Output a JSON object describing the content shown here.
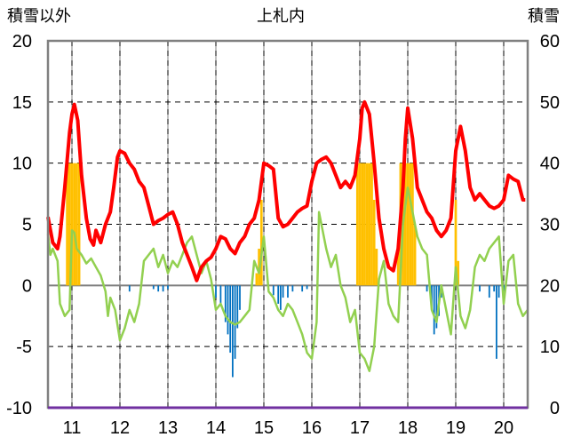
{
  "chart_data": {
    "type": "combo",
    "title": "上札内",
    "y_left_label": "積雪以外",
    "y_right_label": "積雪",
    "y_left_ticks": [
      "20",
      "15",
      "10",
      "5",
      "0",
      "-5",
      "-10"
    ],
    "y_right_ticks": [
      "60",
      "50",
      "40",
      "30",
      "20",
      "10",
      "0"
    ],
    "x_tick_labels": [
      "11",
      "12",
      "13",
      "14",
      "15",
      "16",
      "17",
      "18",
      "19",
      "20"
    ],
    "xlim": [
      10.5,
      20.5
    ],
    "ylim_left": [
      -10,
      20
    ],
    "ylim_right": [
      0,
      60
    ],
    "grid": true,
    "colors": {
      "red_line": "#ff0000",
      "green_line": "#92d050",
      "orange_bars": "#ffc000",
      "blue_bars": "#0070c0",
      "frame": "#808080",
      "bottom_line": "#7030a0"
    },
    "red_line": [
      [
        10.5,
        5.6
      ],
      [
        10.6,
        3.5
      ],
      [
        10.7,
        3.0
      ],
      [
        10.75,
        4.0
      ],
      [
        10.85,
        8.0
      ],
      [
        10.95,
        12.5
      ],
      [
        11.0,
        14.0
      ],
      [
        11.05,
        14.8
      ],
      [
        11.12,
        13.5
      ],
      [
        11.2,
        9.0
      ],
      [
        11.3,
        5.5
      ],
      [
        11.38,
        3.8
      ],
      [
        11.45,
        3.3
      ],
      [
        11.5,
        4.5
      ],
      [
        11.6,
        3.5
      ],
      [
        11.7,
        5.0
      ],
      [
        11.8,
        6.0
      ],
      [
        11.87,
        8.0
      ],
      [
        11.95,
        10.5
      ],
      [
        12.0,
        11.0
      ],
      [
        12.1,
        10.8
      ],
      [
        12.2,
        10.0
      ],
      [
        12.3,
        9.5
      ],
      [
        12.4,
        8.5
      ],
      [
        12.5,
        8.0
      ],
      [
        12.6,
        6.5
      ],
      [
        12.7,
        5.0
      ],
      [
        12.8,
        5.3
      ],
      [
        12.9,
        5.5
      ],
      [
        13.0,
        5.8
      ],
      [
        13.1,
        6.0
      ],
      [
        13.2,
        5.0
      ],
      [
        13.3,
        3.5
      ],
      [
        13.4,
        2.5
      ],
      [
        13.5,
        1.5
      ],
      [
        13.6,
        0.4
      ],
      [
        13.7,
        1.5
      ],
      [
        13.8,
        2.0
      ],
      [
        13.9,
        2.3
      ],
      [
        14.0,
        3.0
      ],
      [
        14.1,
        4.0
      ],
      [
        14.2,
        3.8
      ],
      [
        14.3,
        3.0
      ],
      [
        14.4,
        2.6
      ],
      [
        14.5,
        3.5
      ],
      [
        14.6,
        4.0
      ],
      [
        14.7,
        5.0
      ],
      [
        14.8,
        5.5
      ],
      [
        14.9,
        7.0
      ],
      [
        15.0,
        10.0
      ],
      [
        15.1,
        9.8
      ],
      [
        15.2,
        9.5
      ],
      [
        15.3,
        5.5
      ],
      [
        15.4,
        4.8
      ],
      [
        15.5,
        5.0
      ],
      [
        15.6,
        5.5
      ],
      [
        15.7,
        6.0
      ],
      [
        15.8,
        6.3
      ],
      [
        15.9,
        6.5
      ],
      [
        16.0,
        8.5
      ],
      [
        16.1,
        10.0
      ],
      [
        16.2,
        10.3
      ],
      [
        16.3,
        10.5
      ],
      [
        16.4,
        10.0
      ],
      [
        16.5,
        9.0
      ],
      [
        16.6,
        8.0
      ],
      [
        16.7,
        8.5
      ],
      [
        16.8,
        8.0
      ],
      [
        16.9,
        9.0
      ],
      [
        17.0,
        12.0
      ],
      [
        17.05,
        14.5
      ],
      [
        17.1,
        15.0
      ],
      [
        17.2,
        14.0
      ],
      [
        17.3,
        10.0
      ],
      [
        17.4,
        5.5
      ],
      [
        17.5,
        3.0
      ],
      [
        17.6,
        1.5
      ],
      [
        17.7,
        1.2
      ],
      [
        17.8,
        3.0
      ],
      [
        17.9,
        8.0
      ],
      [
        17.95,
        12.0
      ],
      [
        18.0,
        14.5
      ],
      [
        18.1,
        12.0
      ],
      [
        18.2,
        8.0
      ],
      [
        18.3,
        7.0
      ],
      [
        18.4,
        6.0
      ],
      [
        18.5,
        5.5
      ],
      [
        18.6,
        4.5
      ],
      [
        18.7,
        4.0
      ],
      [
        18.8,
        4.5
      ],
      [
        18.9,
        5.5
      ],
      [
        19.0,
        11.0
      ],
      [
        19.1,
        13.0
      ],
      [
        19.2,
        11.0
      ],
      [
        19.3,
        8.0
      ],
      [
        19.4,
        7.0
      ],
      [
        19.5,
        7.5
      ],
      [
        19.6,
        7.0
      ],
      [
        19.7,
        6.5
      ],
      [
        19.8,
        6.3
      ],
      [
        19.9,
        6.5
      ],
      [
        20.0,
        7.0
      ],
      [
        20.1,
        9.0
      ],
      [
        20.2,
        8.7
      ],
      [
        20.3,
        8.5
      ],
      [
        20.4,
        7.0
      ],
      [
        20.45,
        7.0
      ]
    ],
    "green_line": [
      [
        10.5,
        4.2
      ],
      [
        10.55,
        2.5
      ],
      [
        10.6,
        3.0
      ],
      [
        10.7,
        2.0
      ],
      [
        10.75,
        -1.5
      ],
      [
        10.85,
        -2.5
      ],
      [
        10.95,
        -2.0
      ],
      [
        11.0,
        4.5
      ],
      [
        11.05,
        4.3
      ],
      [
        11.1,
        3.0
      ],
      [
        11.2,
        2.5
      ],
      [
        11.3,
        1.8
      ],
      [
        11.4,
        2.2
      ],
      [
        11.5,
        1.5
      ],
      [
        11.6,
        0.8
      ],
      [
        11.7,
        -0.5
      ],
      [
        11.75,
        -2.5
      ],
      [
        11.8,
        -1.0
      ],
      [
        11.9,
        -2.0
      ],
      [
        12.0,
        -4.5
      ],
      [
        12.1,
        -3.5
      ],
      [
        12.2,
        -2.0
      ],
      [
        12.3,
        -3.0
      ],
      [
        12.4,
        -1.5
      ],
      [
        12.5,
        2.0
      ],
      [
        12.6,
        2.5
      ],
      [
        12.7,
        3.0
      ],
      [
        12.8,
        1.5
      ],
      [
        12.9,
        2.5
      ],
      [
        13.0,
        1.0
      ],
      [
        13.1,
        2.0
      ],
      [
        13.2,
        1.5
      ],
      [
        13.3,
        2.5
      ],
      [
        13.4,
        3.5
      ],
      [
        13.5,
        4.0
      ],
      [
        13.6,
        2.5
      ],
      [
        13.7,
        1.0
      ],
      [
        13.8,
        2.0
      ],
      [
        13.9,
        0.5
      ],
      [
        14.0,
        -2.0
      ],
      [
        14.1,
        -1.5
      ],
      [
        14.2,
        -2.5
      ],
      [
        14.3,
        -3.0
      ],
      [
        14.4,
        -3.2
      ],
      [
        14.5,
        -3.0
      ],
      [
        14.6,
        -2.5
      ],
      [
        14.7,
        -2.0
      ],
      [
        14.8,
        2.0
      ],
      [
        14.9,
        1.0
      ],
      [
        15.0,
        4.0
      ],
      [
        15.1,
        -0.5
      ],
      [
        15.2,
        -1.0
      ],
      [
        15.3,
        -2.0
      ],
      [
        15.4,
        -2.5
      ],
      [
        15.5,
        -1.5
      ],
      [
        15.6,
        -2.0
      ],
      [
        15.7,
        -3.0
      ],
      [
        15.8,
        -4.0
      ],
      [
        15.9,
        -5.5
      ],
      [
        16.0,
        -6.0
      ],
      [
        16.1,
        -3.0
      ],
      [
        16.15,
        6.0
      ],
      [
        16.2,
        5.0
      ],
      [
        16.3,
        3.0
      ],
      [
        16.4,
        1.5
      ],
      [
        16.5,
        2.5
      ],
      [
        16.6,
        0.0
      ],
      [
        16.7,
        -1.0
      ],
      [
        16.8,
        -3.0
      ],
      [
        16.9,
        -2.0
      ],
      [
        17.0,
        -5.5
      ],
      [
        17.1,
        -6.0
      ],
      [
        17.2,
        -7.0
      ],
      [
        17.3,
        -5.0
      ],
      [
        17.4,
        0.5
      ],
      [
        17.5,
        2.0
      ],
      [
        17.6,
        -1.5
      ],
      [
        17.7,
        -2.5
      ],
      [
        17.8,
        -3.0
      ],
      [
        17.9,
        5.0
      ],
      [
        18.0,
        8.0
      ],
      [
        18.1,
        6.0
      ],
      [
        18.2,
        4.0
      ],
      [
        18.3,
        3.0
      ],
      [
        18.4,
        2.5
      ],
      [
        18.5,
        -2.0
      ],
      [
        18.6,
        -3.0
      ],
      [
        18.7,
        0.0
      ],
      [
        18.8,
        -2.0
      ],
      [
        18.9,
        -4.0
      ],
      [
        19.0,
        1.5
      ],
      [
        19.1,
        -2.5
      ],
      [
        19.2,
        -3.5
      ],
      [
        19.3,
        -2.0
      ],
      [
        19.4,
        1.5
      ],
      [
        19.5,
        2.5
      ],
      [
        19.6,
        2.0
      ],
      [
        19.7,
        3.0
      ],
      [
        19.8,
        3.5
      ],
      [
        19.9,
        4.0
      ],
      [
        20.0,
        -1.5
      ],
      [
        20.1,
        2.0
      ],
      [
        20.2,
        2.5
      ],
      [
        20.3,
        -1.5
      ],
      [
        20.4,
        -2.5
      ],
      [
        20.5,
        -2.0
      ]
    ],
    "orange_bars": [
      [
        10.9,
        10.0
      ],
      [
        10.95,
        10.0
      ],
      [
        11.0,
        10.0
      ],
      [
        11.05,
        10.0
      ],
      [
        11.1,
        10.0
      ],
      [
        11.15,
        10.0
      ],
      [
        14.85,
        1.0
      ],
      [
        14.9,
        3.0
      ],
      [
        14.95,
        7.0
      ],
      [
        16.95,
        10.0
      ],
      [
        17.0,
        10.0
      ],
      [
        17.05,
        10.0
      ],
      [
        17.1,
        10.0
      ],
      [
        17.15,
        10.0
      ],
      [
        17.2,
        10.0
      ],
      [
        17.25,
        10.0
      ],
      [
        17.3,
        7.0
      ],
      [
        17.35,
        3.0
      ],
      [
        17.8,
        3.0
      ],
      [
        17.85,
        10.0
      ],
      [
        17.9,
        10.0
      ],
      [
        17.95,
        10.0
      ],
      [
        18.0,
        10.0
      ],
      [
        18.05,
        10.0
      ],
      [
        18.1,
        10.0
      ],
      [
        18.15,
        5.0
      ],
      [
        19.0,
        7.0
      ],
      [
        19.05,
        2.0
      ]
    ],
    "blue_bars": [
      [
        12.2,
        -0.5
      ],
      [
        12.7,
        -0.3
      ],
      [
        12.8,
        -0.5
      ],
      [
        12.9,
        -0.5
      ],
      [
        13.0,
        -0.3
      ],
      [
        14.0,
        -1.0
      ],
      [
        14.1,
        -1.5
      ],
      [
        14.2,
        -3.0
      ],
      [
        14.25,
        -4.0
      ],
      [
        14.3,
        -5.5
      ],
      [
        14.35,
        -7.5
      ],
      [
        14.4,
        -6.0
      ],
      [
        14.45,
        -3.5
      ],
      [
        14.5,
        -2.0
      ],
      [
        15.2,
        -0.8
      ],
      [
        15.3,
        -1.5
      ],
      [
        15.35,
        -2.0
      ],
      [
        15.4,
        -1.0
      ],
      [
        15.5,
        -1.0
      ],
      [
        15.6,
        -0.5
      ],
      [
        15.8,
        -0.5
      ],
      [
        15.9,
        -0.3
      ],
      [
        18.4,
        -0.5
      ],
      [
        18.5,
        -2.0
      ],
      [
        18.55,
        -4.0
      ],
      [
        18.6,
        -3.5
      ],
      [
        18.65,
        -2.5
      ],
      [
        18.7,
        -1.0
      ],
      [
        19.5,
        -0.5
      ],
      [
        19.7,
        -1.0
      ],
      [
        19.8,
        -0.5
      ],
      [
        19.85,
        -6.0
      ],
      [
        19.9,
        -1.0
      ],
      [
        20.0,
        -0.5
      ]
    ]
  }
}
